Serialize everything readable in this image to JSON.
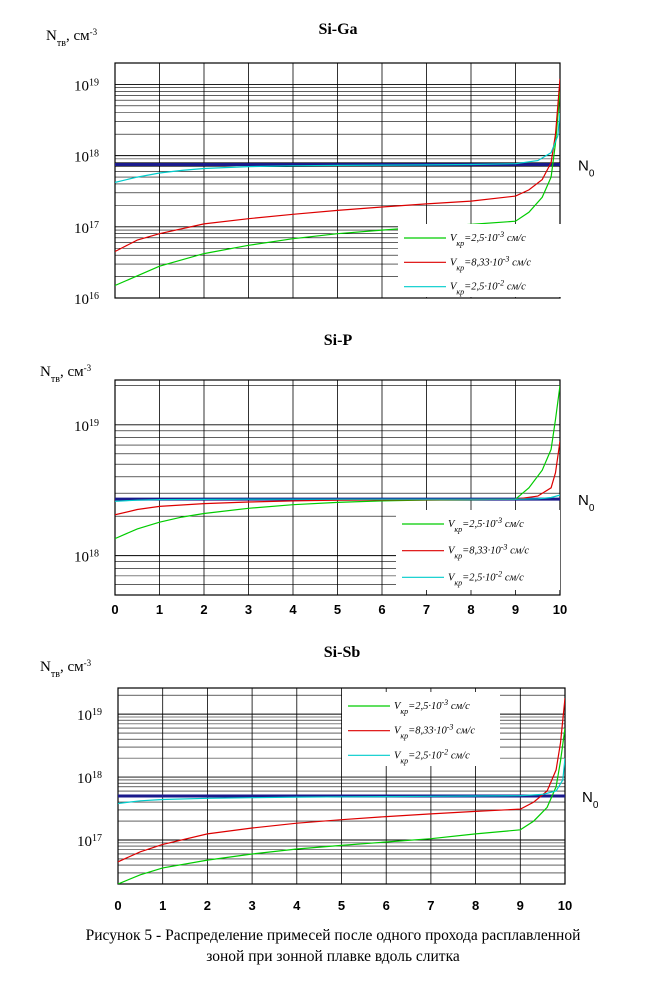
{
  "figure": {
    "caption_line1": "Рисунок 5 - Распределение примесей после одного прохода расплавленной",
    "caption_line2": "зоной при зонной плавке вдоль слитка"
  },
  "chart_data": [
    {
      "type": "line",
      "title": "Si-Ga",
      "ylabel": "Nтв, см-3",
      "yscale": "log",
      "ylim": [
        1e+16,
        2e+19
      ],
      "xlim": [
        0,
        10
      ],
      "x_tick_labels": [],
      "y_tick_labels": [
        "1019",
        "1018",
        "1017",
        "1016"
      ],
      "grid": true,
      "legend_placement": "bottom-right",
      "reference_line": {
        "label": "N0",
        "value": 7.5e+17,
        "color": "#1a1a8c"
      },
      "series": [
        {
          "name": "Vкр=2,5·10-3 см/с",
          "color": "#00cc00",
          "x": [
            0,
            1,
            2,
            3,
            4,
            5,
            6,
            7,
            8,
            9,
            9.3,
            9.6,
            9.8,
            9.9,
            10
          ],
          "y": [
            1.5e+16,
            2.8e+16,
            4.2e+16,
            5.5e+16,
            6.8e+16,
            8e+16,
            9e+16,
            1e+17,
            1.08e+17,
            1.2e+17,
            1.6e+17,
            2.6e+17,
            5e+17,
            1.5e+18,
            8e+18
          ]
        },
        {
          "name": "Vкр=8,33·10-3 см/с",
          "color": "#dd0000",
          "x": [
            0,
            0.5,
            1,
            2,
            3,
            4,
            5,
            6,
            7,
            8,
            9,
            9.3,
            9.6,
            9.8,
            9.9,
            10
          ],
          "y": [
            4.5e+16,
            6.5e+16,
            8e+16,
            1.1e+17,
            1.3e+17,
            1.5e+17,
            1.7e+17,
            1.9e+17,
            2.1e+17,
            2.3e+17,
            2.7e+17,
            3.3e+17,
            4.6e+17,
            8e+17,
            2e+18,
            1.2e+19
          ]
        },
        {
          "name": "Vкр=2,5·10-2 см/с",
          "color": "#00cccc",
          "x": [
            0,
            0.5,
            1,
            1.5,
            2,
            3,
            4,
            5,
            6,
            7,
            8,
            9,
            9.5,
            9.8,
            9.95,
            10
          ],
          "y": [
            4.2e+17,
            5e+17,
            5.7e+17,
            6.2e+17,
            6.6e+17,
            7e+17,
            7.2e+17,
            7.3e+17,
            7.35e+17,
            7.4e+17,
            7.5e+17,
            7.7e+17,
            8.5e+17,
            1.1e+18,
            1.9e+18,
            4e+18
          ]
        }
      ]
    },
    {
      "type": "line",
      "title": "Si-P",
      "ylabel": "Nтв, см-3",
      "yscale": "log",
      "ylim": [
        5e+17,
        2.2e+19
      ],
      "xlim": [
        0,
        10
      ],
      "x_tick_labels": [
        "0",
        "1",
        "2",
        "3",
        "4",
        "5",
        "6",
        "7",
        "8",
        "9",
        "10"
      ],
      "y_tick_labels": [
        "1019",
        "1018"
      ],
      "grid": true,
      "legend_placement": "bottom-right",
      "reference_line": {
        "label": "N0",
        "value": 2.7e+18,
        "color": "#1a1a8c"
      },
      "series": [
        {
          "name": "Vкр=2,5·10-3 см/с",
          "color": "#00cc00",
          "x": [
            0,
            0.5,
            1,
            1.5,
            2,
            3,
            4,
            5,
            6,
            7,
            8,
            9,
            9.3,
            9.6,
            9.8,
            9.9,
            10
          ],
          "y": [
            1.35e+18,
            1.6e+18,
            1.8e+18,
            1.97e+18,
            2.1e+18,
            2.3e+18,
            2.45e+18,
            2.55e+18,
            2.62e+18,
            2.66e+18,
            2.68e+18,
            2.7e+18,
            3.3e+18,
            4.5e+18,
            6.5e+18,
            1.1e+19,
            2e+19
          ]
        },
        {
          "name": "Vкр=8,33·10-3 см/с",
          "color": "#dd0000",
          "x": [
            0,
            0.5,
            1,
            2,
            3,
            4,
            5,
            6,
            7,
            8,
            9,
            9.5,
            9.8,
            9.9,
            10
          ],
          "y": [
            2.05e+18,
            2.25e+18,
            2.38e+18,
            2.5e+18,
            2.57e+18,
            2.62e+18,
            2.65e+18,
            2.67e+18,
            2.68e+18,
            2.69e+18,
            2.7e+18,
            2.85e+18,
            3.3e+18,
            4.3e+18,
            7.5e+18
          ]
        },
        {
          "name": "Vкр=2,5·10-2 см/с",
          "color": "#00cccc",
          "x": [
            0,
            0.5,
            1,
            2,
            3,
            4,
            5,
            6,
            7,
            8,
            9,
            9.5,
            9.8,
            10
          ],
          "y": [
            2.6e+18,
            2.65e+18,
            2.68e+18,
            2.69e+18,
            2.7e+18,
            2.7e+18,
            2.7e+18,
            2.7e+18,
            2.7e+18,
            2.7e+18,
            2.7e+18,
            2.72e+18,
            2.78e+18,
            2.9e+18
          ]
        }
      ]
    },
    {
      "type": "line",
      "title": "Si-Sb",
      "ylabel": "Nтв, см-3",
      "yscale": "log",
      "ylim": [
        2e+16,
        2.6e+19
      ],
      "xlim": [
        0,
        10
      ],
      "x_tick_labels": [
        "0",
        "1",
        "2",
        "3",
        "4",
        "5",
        "6",
        "7",
        "8",
        "9",
        "10"
      ],
      "y_tick_labels": [
        "1019",
        "1018",
        "1017"
      ],
      "grid": true,
      "legend_placement": "top-center",
      "reference_line": {
        "label": "N0",
        "value": 5e+17,
        "color": "#1a1a8c"
      },
      "series": [
        {
          "name": "Vкр=2,5·10-3 см/с",
          "color": "#00cc00",
          "x": [
            0,
            0.5,
            1,
            2,
            3,
            4,
            5,
            6,
            7,
            8,
            9,
            9.3,
            9.6,
            9.8,
            9.9,
            10
          ],
          "y": [
            2e+16,
            2.8e+16,
            3.6e+16,
            4.8e+16,
            6e+16,
            7.2e+16,
            8.2e+16,
            9.3e+16,
            1.05e+17,
            1.25e+17,
            1.45e+17,
            2e+17,
            3.3e+17,
            7e+17,
            1.8e+18,
            6e+18
          ]
        },
        {
          "name": "Vкр=8,33·10-3 см/с",
          "color": "#dd0000",
          "x": [
            0,
            0.5,
            1,
            2,
            3,
            4,
            5,
            6,
            7,
            8,
            9,
            9.3,
            9.6,
            9.8,
            9.9,
            10
          ],
          "y": [
            4.5e+16,
            6.5e+16,
            8.5e+16,
            1.25e+17,
            1.55e+17,
            1.85e+17,
            2.1e+17,
            2.35e+17,
            2.6e+17,
            2.85e+17,
            3.1e+17,
            4e+17,
            6e+17,
            1.3e+18,
            3.5e+18,
            1.8e+19
          ]
        },
        {
          "name": "Vкр=2,5·10-2 см/с",
          "color": "#00cccc",
          "x": [
            0,
            0.5,
            1,
            2,
            3,
            4,
            5,
            6,
            7,
            8,
            9,
            9.5,
            9.8,
            9.95,
            10
          ],
          "y": [
            3.8e+17,
            4.2e+17,
            4.4e+17,
            4.6e+17,
            4.7e+17,
            4.8e+17,
            4.85e+17,
            4.9e+17,
            4.95e+17,
            5e+17,
            5.05e+17,
            5.3e+17,
            6e+17,
            9e+17,
            2e+18
          ]
        }
      ]
    }
  ]
}
